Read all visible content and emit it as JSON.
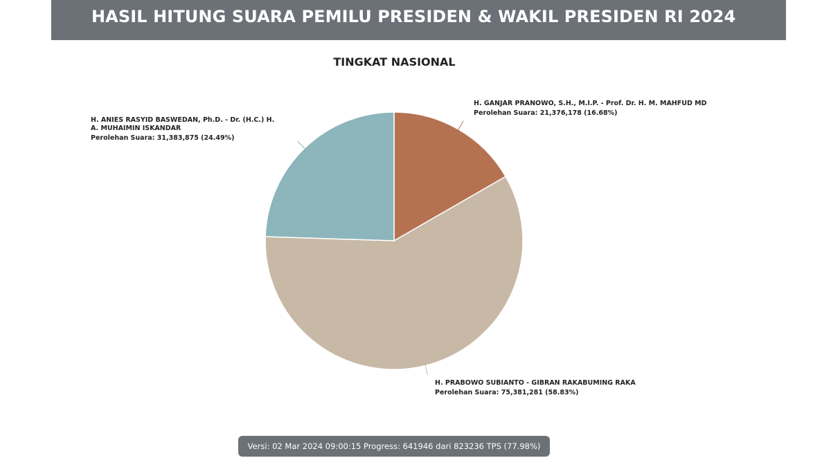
{
  "header": {
    "title": "HASIL HITUNG SUARA PEMILU PRESIDEN & WAKIL PRESIDEN RI 2024"
  },
  "chart_data": {
    "type": "pie",
    "title": "TINGKAT NASIONAL",
    "slices": [
      {
        "name_lines": [
          "H. GANJAR PRANOWO, S.H., M.I.P. - Prof. Dr. H. M. MAHFUD MD"
        ],
        "votes_label": "Perolehan Suara: 21,376,178 (16.68%)",
        "value": 21376178,
        "percent": 16.68,
        "color": "#b57251"
      },
      {
        "name_lines": [
          "H. PRABOWO SUBIANTO - GIBRAN RAKABUMING RAKA"
        ],
        "votes_label": "Perolehan Suara: 75,381,281 (58.83%)",
        "value": 75381281,
        "percent": 58.83,
        "color": "#c8b8a6"
      },
      {
        "name_lines": [
          "H. ANIES RASYID BASWEDAN, Ph.D. - Dr. (H.C.) H.",
          "A. MUHAIMIN ISKANDAR"
        ],
        "votes_label": "Perolehan Suara: 31,383,875 (24.49%)",
        "value": 31383875,
        "percent": 24.49,
        "color": "#8db5bc"
      }
    ]
  },
  "footer": {
    "version_text": "Versi: 02 Mar 2024 09:00:15 Progress: 641946 dari 823236 TPS (77.98%)"
  }
}
